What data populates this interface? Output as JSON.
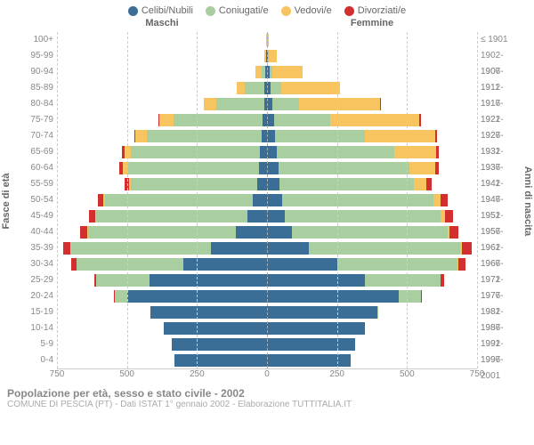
{
  "legend": [
    {
      "label": "Celibi/Nubili",
      "color": "#3b6e97"
    },
    {
      "label": "Coniugati/e",
      "color": "#a9ce9f"
    },
    {
      "label": "Vedovi/e",
      "color": "#f8c460"
    },
    {
      "label": "Divorziati/e",
      "color": "#d32f2f"
    }
  ],
  "headers": {
    "male": "Maschi",
    "female": "Femmine"
  },
  "axis_left_label": "Fasce di età",
  "axis_right_label": "Anni di nascita",
  "x_max": 750,
  "x_ticks_left": [
    750,
    500,
    250,
    0
  ],
  "x_ticks_right": [
    250,
    500,
    750
  ],
  "footer": {
    "title": "Popolazione per età, sesso e stato civile - 2002",
    "sub": "COMUNE DI PESCIA (PT) - Dati ISTAT 1° gennaio 2002 - Elaborazione TUTTITALIA.IT"
  },
  "colors": {
    "celibi": "#3b6e97",
    "coniugati": "#a9ce9f",
    "vedovi": "#f8c460",
    "divorziati": "#d32f2f",
    "grid": "#cccccc",
    "bg": "#ffffff"
  },
  "rows": [
    {
      "age": "100+",
      "year": "≤ 1901",
      "m": [
        0,
        0,
        2,
        0
      ],
      "f": [
        0,
        0,
        5,
        0
      ]
    },
    {
      "age": "95-99",
      "year": "1902-1906",
      "m": [
        2,
        2,
        5,
        0
      ],
      "f": [
        3,
        3,
        30,
        0
      ]
    },
    {
      "age": "90-94",
      "year": "1907-1911",
      "m": [
        5,
        15,
        20,
        0
      ],
      "f": [
        8,
        10,
        110,
        0
      ]
    },
    {
      "age": "85-89",
      "year": "1912-1916",
      "m": [
        8,
        70,
        30,
        0
      ],
      "f": [
        12,
        40,
        210,
        0
      ]
    },
    {
      "age": "80-84",
      "year": "1917-1921",
      "m": [
        10,
        170,
        45,
        2
      ],
      "f": [
        18,
        95,
        290,
        2
      ]
    },
    {
      "age": "75-79",
      "year": "1922-1926",
      "m": [
        15,
        320,
        50,
        3
      ],
      "f": [
        25,
        200,
        320,
        4
      ]
    },
    {
      "age": "70-74",
      "year": "1927-1931",
      "m": [
        20,
        410,
        40,
        5
      ],
      "f": [
        30,
        320,
        250,
        6
      ]
    },
    {
      "age": "65-69",
      "year": "1932-1936",
      "m": [
        25,
        460,
        25,
        8
      ],
      "f": [
        35,
        420,
        150,
        10
      ]
    },
    {
      "age": "60-64",
      "year": "1937-1941",
      "m": [
        30,
        470,
        15,
        12
      ],
      "f": [
        40,
        470,
        90,
        14
      ]
    },
    {
      "age": "55-59",
      "year": "1942-1946",
      "m": [
        35,
        450,
        8,
        15
      ],
      "f": [
        45,
        480,
        45,
        18
      ]
    },
    {
      "age": "50-54",
      "year": "1947-1951",
      "m": [
        50,
        530,
        5,
        20
      ],
      "f": [
        55,
        540,
        25,
        25
      ]
    },
    {
      "age": "45-49",
      "year": "1952-1956",
      "m": [
        70,
        540,
        3,
        22
      ],
      "f": [
        65,
        555,
        15,
        28
      ]
    },
    {
      "age": "40-44",
      "year": "1957-1961",
      "m": [
        110,
        530,
        2,
        25
      ],
      "f": [
        90,
        555,
        8,
        30
      ]
    },
    {
      "age": "35-39",
      "year": "1962-1966",
      "m": [
        200,
        500,
        1,
        28
      ],
      "f": [
        150,
        540,
        5,
        35
      ]
    },
    {
      "age": "30-34",
      "year": "1967-1971",
      "m": [
        300,
        380,
        0,
        18
      ],
      "f": [
        250,
        430,
        3,
        25
      ]
    },
    {
      "age": "25-29",
      "year": "1972-1976",
      "m": [
        420,
        190,
        0,
        8
      ],
      "f": [
        350,
        270,
        1,
        12
      ]
    },
    {
      "age": "20-24",
      "year": "1977-1981",
      "m": [
        500,
        45,
        0,
        2
      ],
      "f": [
        470,
        80,
        0,
        3
      ]
    },
    {
      "age": "15-19",
      "year": "1982-1986",
      "m": [
        415,
        2,
        0,
        0
      ],
      "f": [
        395,
        3,
        0,
        0
      ]
    },
    {
      "age": "10-14",
      "year": "1987-1991",
      "m": [
        370,
        0,
        0,
        0
      ],
      "f": [
        350,
        0,
        0,
        0
      ]
    },
    {
      "age": "5-9",
      "year": "1992-1996",
      "m": [
        340,
        0,
        0,
        0
      ],
      "f": [
        315,
        0,
        0,
        0
      ]
    },
    {
      "age": "0-4",
      "year": "1997-2001",
      "m": [
        330,
        0,
        0,
        0
      ],
      "f": [
        300,
        0,
        0,
        0
      ]
    }
  ]
}
